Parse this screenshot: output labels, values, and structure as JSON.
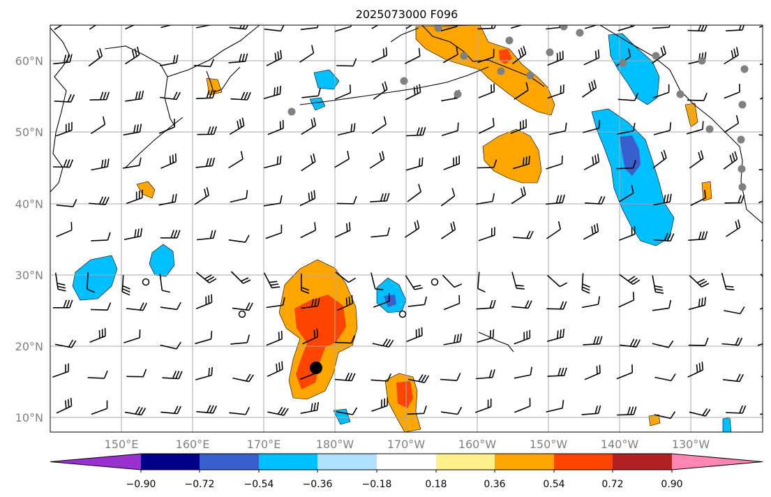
{
  "title": "2025073000 F096",
  "map": {
    "lat_labels": [
      "60°N",
      "50°N",
      "40°N",
      "30°N",
      "20°N",
      "10°N"
    ],
    "lon_labels": [
      "150°E",
      "160°E",
      "170°E",
      "180°W",
      "170°W",
      "160°W",
      "150°W",
      "140°W",
      "130°W"
    ],
    "extent": {
      "lon_min": 140,
      "lon_max": 240,
      "lat_min": 8,
      "lat_max": 65
    }
  },
  "colorbar": {
    "tick_labels": [
      "−0.90",
      "−0.72",
      "−0.54",
      "−0.36",
      "−0.18",
      "0.18",
      "0.36",
      "0.54",
      "0.72",
      "0.90"
    ],
    "levels": [
      -0.9,
      -0.72,
      -0.54,
      -0.36,
      -0.18,
      0.18,
      0.36,
      0.54,
      0.72,
      0.9
    ],
    "colors": [
      "#9b30d0",
      "#00008b",
      "#3a5fcd",
      "#00bfff",
      "#b0e2ff",
      "#ffffff",
      "#fff08c",
      "#ffa500",
      "#ff4500",
      "#b22222",
      "#ff86b4"
    ]
  }
}
